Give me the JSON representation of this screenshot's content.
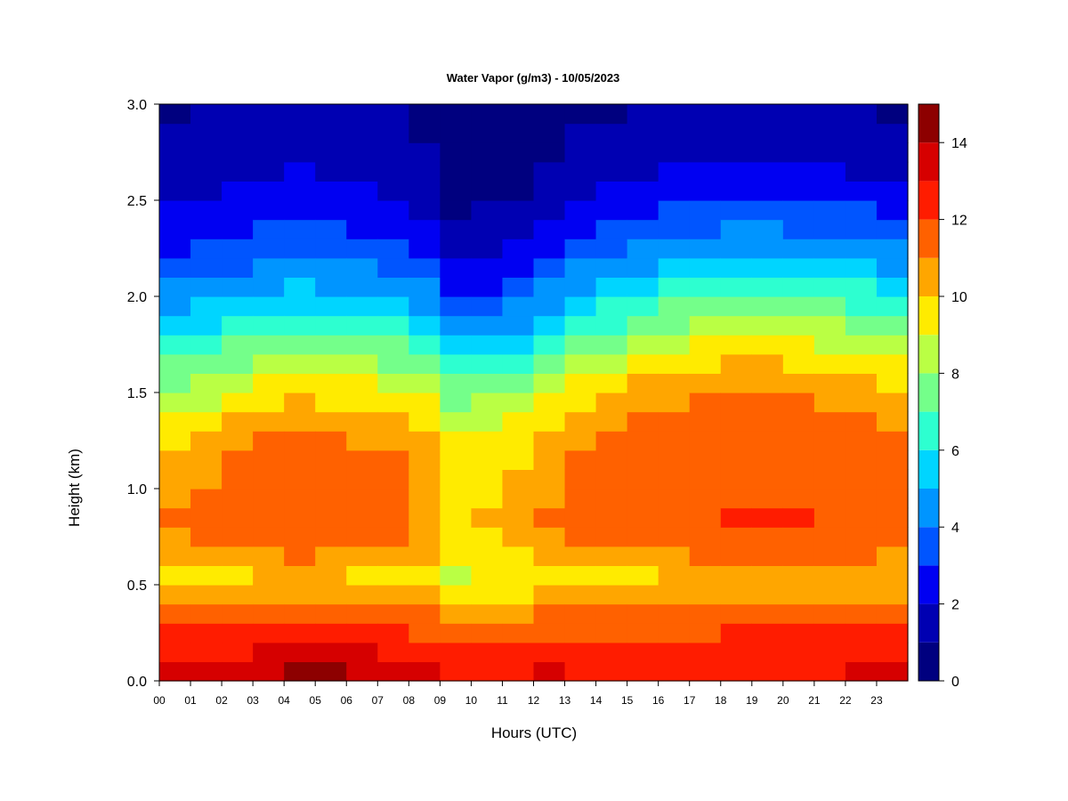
{
  "chart_data": {
    "type": "heatmap",
    "title": "Water Vapor (g/m3) - 10/05/2023",
    "xlabel": "Hours (UTC)",
    "ylabel": "Height (km)",
    "x_range": [
      0,
      24
    ],
    "y_range": [
      0,
      3
    ],
    "x_ticks": [
      "00",
      "01",
      "02",
      "03",
      "04",
      "05",
      "06",
      "07",
      "08",
      "09",
      "10",
      "11",
      "12",
      "13",
      "14",
      "15",
      "16",
      "17",
      "18",
      "19",
      "20",
      "21",
      "22",
      "23"
    ],
    "y_ticks": [
      "0.0",
      "0.5",
      "1.0",
      "1.5",
      "2.0",
      "2.5",
      "3.0"
    ],
    "colorbar": {
      "range": [
        0,
        15
      ],
      "levels": [
        0,
        1,
        2,
        3,
        4,
        5,
        6,
        7,
        8,
        9,
        10,
        11,
        12,
        13,
        14,
        15
      ],
      "tick_labels": [
        "0",
        "2",
        "4",
        "6",
        "8",
        "10",
        "12",
        "14"
      ],
      "colors": [
        "#00007F",
        "#0000B2",
        "#0000F2",
        "#0055FF",
        "#0095FF",
        "#00D5FF",
        "#2DFFD0",
        "#74FF8A",
        "#BAFF44",
        "#FFEB00",
        "#FFA600",
        "#FF6100",
        "#FF1C00",
        "#D60000",
        "#8D0000"
      ]
    },
    "height_km": [
      0.05,
      0.15,
      0.25,
      0.35,
      0.45,
      0.55,
      0.65,
      0.75,
      0.85,
      0.95,
      1.05,
      1.15,
      1.25,
      1.35,
      1.45,
      1.55,
      1.65,
      1.75,
      1.85,
      1.95,
      2.05,
      2.15,
      2.25,
      2.35,
      2.45,
      2.55,
      2.65,
      2.75,
      2.85,
      2.95
    ],
    "hours_utc": [
      0.5,
      1.5,
      2.5,
      3.5,
      4.5,
      5.5,
      6.5,
      7.5,
      8.5,
      9.5,
      10.5,
      11.5,
      12.5,
      13.5,
      14.5,
      15.5,
      16.5,
      17.5,
      18.5,
      19.5,
      20.5,
      21.5,
      22.5,
      23.5
    ],
    "profiles_g_m3": [
      [
        13.2,
        12.8,
        12.1,
        11.3,
        10.4,
        9.6,
        10.2,
        10.8,
        11.0,
        10.9,
        10.7,
        10.3,
        9.8,
        9.2,
        8.6,
        7.8,
        7.0,
        6.2,
        5.4,
        4.7,
        4.0,
        3.4,
        2.9,
        2.4,
        2.1,
        1.8,
        1.5,
        1.3,
        1.1,
        0.9
      ],
      [
        13.1,
        12.7,
        12.0,
        11.2,
        10.3,
        9.7,
        10.4,
        11.0,
        11.2,
        11.1,
        10.9,
        10.5,
        10.0,
        9.4,
        8.8,
        8.0,
        7.2,
        6.4,
        5.7,
        5.0,
        4.3,
        3.7,
        3.1,
        2.6,
        2.2,
        1.9,
        1.6,
        1.4,
        1.2,
        1.0
      ],
      [
        13.4,
        12.9,
        12.2,
        11.4,
        10.5,
        9.9,
        10.7,
        11.3,
        11.5,
        11.4,
        11.3,
        11.1,
        10.8,
        10.3,
        9.6,
        8.8,
        7.9,
        7.0,
        6.1,
        5.3,
        4.6,
        3.9,
        3.3,
        2.8,
        2.4,
        2.0,
        1.7,
        1.5,
        1.2,
        1.0
      ],
      [
        13.8,
        13.1,
        12.3,
        11.5,
        10.6,
        10.0,
        10.9,
        11.5,
        11.7,
        11.6,
        11.5,
        11.3,
        11.0,
        10.5,
        9.9,
        9.1,
        8.2,
        7.3,
        6.4,
        5.6,
        4.8,
        4.1,
        3.5,
        3.0,
        2.6,
        2.2,
        1.9,
        1.6,
        1.4,
        1.1
      ],
      [
        14.2,
        13.3,
        12.4,
        11.6,
        10.7,
        10.1,
        11.0,
        11.6,
        11.8,
        11.7,
        11.6,
        11.4,
        11.1,
        10.6,
        10.0,
        9.3,
        8.4,
        7.5,
        6.6,
        5.8,
        5.0,
        4.3,
        3.7,
        3.1,
        2.7,
        2.3,
        2.0,
        1.7,
        1.4,
        1.2
      ],
      [
        14.0,
        13.2,
        12.3,
        11.5,
        10.6,
        10.0,
        10.9,
        11.5,
        11.7,
        11.6,
        11.5,
        11.3,
        11.0,
        10.5,
        9.9,
        9.2,
        8.3,
        7.4,
        6.5,
        5.7,
        4.9,
        4.2,
        3.6,
        3.0,
        2.6,
        2.2,
        1.9,
        1.6,
        1.4,
        1.1
      ],
      [
        13.5,
        13.0,
        12.2,
        11.4,
        10.5,
        9.9,
        10.8,
        11.4,
        11.6,
        11.5,
        11.4,
        11.2,
        10.9,
        10.4,
        9.8,
        9.0,
        8.1,
        7.2,
        6.3,
        5.5,
        4.7,
        4.0,
        3.4,
        2.9,
        2.5,
        2.1,
        1.8,
        1.5,
        1.3,
        1.0
      ],
      [
        13.2,
        12.8,
        12.1,
        11.3,
        10.3,
        9.8,
        10.7,
        11.3,
        11.5,
        11.4,
        11.3,
        11.1,
        10.7,
        10.2,
        9.6,
        8.8,
        7.9,
        7.0,
        6.1,
        5.3,
        4.5,
        3.8,
        3.2,
        2.7,
        2.3,
        1.9,
        1.6,
        1.4,
        1.2,
        1.0
      ],
      [
        13.0,
        12.6,
        11.9,
        11.0,
        10.0,
        9.5,
        10.1,
        10.6,
        10.8,
        10.7,
        10.6,
        10.4,
        10.1,
        9.6,
        9.0,
        8.2,
        7.3,
        6.4,
        5.6,
        4.8,
        4.1,
        3.4,
        2.8,
        2.3,
        1.9,
        1.6,
        1.3,
        1.1,
        0.9,
        0.8
      ],
      [
        12.8,
        12.2,
        11.3,
        10.4,
        9.2,
        8.7,
        9.1,
        9.5,
        9.7,
        9.6,
        9.5,
        9.3,
        9.0,
        8.5,
        7.8,
        7.0,
        6.0,
        5.0,
        4.1,
        3.3,
        2.6,
        2.0,
        1.5,
        1.1,
        0.8,
        0.6,
        0.5,
        0.4,
        0.3,
        0.2
      ],
      [
        12.9,
        12.4,
        11.5,
        10.6,
        9.5,
        9.0,
        9.4,
        9.8,
        10.0,
        9.9,
        9.8,
        9.6,
        9.3,
        8.8,
        8.1,
        7.3,
        6.3,
        5.3,
        4.4,
        3.6,
        2.9,
        2.2,
        1.7,
        1.3,
        1.0,
        0.8,
        0.6,
        0.5,
        0.4,
        0.3
      ],
      [
        12.9,
        12.5,
        11.7,
        10.8,
        9.7,
        9.3,
        9.7,
        10.1,
        10.3,
        10.2,
        10.1,
        9.9,
        9.6,
        9.1,
        8.5,
        7.7,
        6.8,
        5.8,
        4.9,
        4.1,
        3.3,
        2.6,
        2.0,
        1.6,
        1.2,
        0.9,
        0.7,
        0.6,
        0.5,
        0.4
      ],
      [
        13.0,
        12.6,
        11.9,
        11.0,
        10.0,
        9.6,
        10.3,
        10.8,
        11.0,
        10.9,
        10.8,
        10.5,
        10.2,
        9.7,
        9.1,
        8.4,
        7.5,
        6.6,
        5.7,
        4.9,
        4.1,
        3.4,
        2.7,
        2.2,
        1.7,
        1.3,
        1.0,
        0.8,
        0.6,
        0.5
      ],
      [
        12.4,
        12.3,
        11.9,
        11.1,
        10.2,
        9.8,
        10.6,
        11.2,
        11.4,
        11.3,
        11.2,
        11.0,
        10.7,
        10.3,
        9.7,
        9.0,
        8.2,
        7.3,
        6.4,
        5.6,
        4.8,
        4.0,
        3.3,
        2.7,
        2.2,
        1.8,
        1.4,
        1.2,
        1.0,
        0.8
      ],
      [
        12.3,
        12.3,
        11.8,
        11.1,
        10.3,
        9.9,
        10.8,
        11.4,
        11.6,
        11.5,
        11.4,
        11.2,
        11.0,
        10.6,
        10.1,
        9.5,
        8.7,
        7.8,
        6.9,
        6.0,
        5.2,
        4.4,
        3.7,
        3.0,
        2.5,
        2.0,
        1.7,
        1.4,
        1.1,
        0.9
      ],
      [
        12.1,
        12.2,
        11.8,
        11.1,
        10.3,
        9.9,
        10.8,
        11.5,
        11.7,
        11.6,
        11.5,
        11.4,
        11.2,
        11.0,
        10.7,
        10.1,
        9.3,
        8.4,
        7.5,
        6.6,
        5.7,
        4.9,
        4.1,
        3.4,
        2.8,
        2.3,
        1.9,
        1.5,
        1.2,
        1.0
      ],
      [
        12.2,
        12.2,
        11.8,
        11.1,
        10.4,
        10.0,
        10.9,
        11.6,
        11.8,
        11.7,
        11.6,
        11.5,
        11.4,
        11.2,
        10.9,
        10.4,
        9.7,
        8.8,
        7.9,
        7.0,
        6.1,
        5.2,
        4.4,
        3.7,
        3.0,
        2.5,
        2.0,
        1.7,
        1.3,
        1.1
      ],
      [
        12.3,
        12.3,
        11.9,
        11.2,
        10.4,
        10.0,
        11.0,
        11.7,
        11.9,
        11.8,
        11.7,
        11.6,
        11.5,
        11.3,
        11.0,
        10.6,
        9.9,
        9.1,
        8.2,
        7.3,
        6.4,
        5.5,
        4.6,
        3.9,
        3.2,
        2.6,
        2.1,
        1.7,
        1.4,
        1.1
      ],
      [
        12.8,
        12.7,
        12.1,
        11.3,
        10.5,
        10.1,
        11.1,
        11.8,
        12.0,
        11.9,
        11.8,
        11.7,
        11.6,
        11.4,
        11.1,
        10.7,
        10.0,
        9.2,
        8.3,
        7.4,
        6.5,
        5.6,
        4.8,
        4.0,
        3.3,
        2.7,
        2.2,
        1.8,
        1.4,
        1.1
      ],
      [
        12.9,
        12.8,
        12.2,
        11.4,
        10.5,
        10.1,
        11.1,
        11.8,
        12.0,
        11.9,
        11.8,
        11.7,
        11.6,
        11.4,
        11.1,
        10.7,
        10.0,
        9.2,
        8.3,
        7.4,
        6.5,
        5.6,
        4.8,
        4.0,
        3.3,
        2.7,
        2.2,
        1.8,
        1.4,
        1.1
      ],
      [
        12.9,
        12.8,
        12.2,
        11.4,
        10.5,
        10.1,
        11.1,
        11.8,
        12.0,
        11.9,
        11.8,
        11.7,
        11.6,
        11.4,
        11.1,
        10.6,
        9.9,
        9.1,
        8.2,
        7.3,
        6.4,
        5.5,
        4.7,
        3.9,
        3.2,
        2.6,
        2.1,
        1.7,
        1.3,
        1.1
      ],
      [
        12.6,
        12.5,
        12.0,
        11.3,
        10.5,
        10.1,
        11.0,
        11.7,
        11.9,
        11.8,
        11.7,
        11.6,
        11.4,
        11.2,
        10.9,
        10.4,
        9.7,
        8.9,
        8.0,
        7.1,
        6.2,
        5.3,
        4.5,
        3.7,
        3.0,
        2.5,
        2.0,
        1.6,
        1.3,
        1.0
      ],
      [
        13.0,
        12.8,
        12.2,
        11.4,
        10.5,
        10.1,
        11.0,
        11.7,
        11.9,
        11.8,
        11.6,
        11.5,
        11.3,
        11.0,
        10.7,
        10.2,
        9.5,
        8.7,
        7.8,
        6.9,
        6.0,
        5.2,
        4.4,
        3.6,
        3.0,
        2.4,
        1.9,
        1.6,
        1.3,
        1.0
      ],
      [
        13.3,
        12.9,
        12.2,
        11.4,
        10.5,
        10.0,
        10.9,
        11.6,
        11.8,
        11.7,
        11.5,
        11.3,
        11.1,
        10.8,
        10.4,
        9.8,
        9.1,
        8.3,
        7.4,
        6.5,
        5.6,
        4.8,
        4.0,
        3.3,
        2.7,
        2.2,
        1.8,
        1.4,
        1.1,
        0.9
      ]
    ]
  }
}
